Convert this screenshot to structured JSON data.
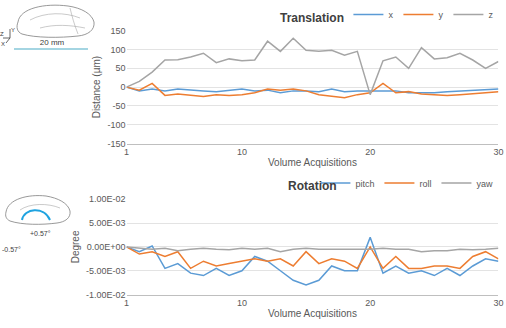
{
  "chart_data": [
    {
      "type": "line",
      "title": "Translation",
      "x": [
        1,
        2,
        3,
        4,
        5,
        6,
        7,
        8,
        9,
        10,
        11,
        12,
        13,
        14,
        15,
        16,
        17,
        18,
        19,
        20,
        21,
        22,
        23,
        24,
        25,
        26,
        27,
        28,
        29,
        30
      ],
      "xlabel": "Volume Acquisitions",
      "ylabel": "Distance (µm)",
      "xlim": [
        1,
        30
      ],
      "xticks": [
        1,
        10,
        20,
        30
      ],
      "ylim": [
        -150,
        150
      ],
      "yticks": [
        -150,
        -100,
        -50,
        0,
        50,
        100,
        150
      ],
      "grid": true,
      "legend": "top right",
      "annotations": [
        "20 mm",
        "Z",
        "Y",
        "X"
      ],
      "series": [
        {
          "name": "x",
          "color": "#5b9bd5",
          "values": [
            0,
            -10,
            -5,
            -10,
            -5,
            -8,
            -10,
            -12,
            -8,
            -5,
            -10,
            -8,
            -15,
            -10,
            -10,
            -12,
            -5,
            -12,
            -10,
            -10,
            -8,
            -10,
            -15,
            -15,
            -15,
            -12,
            -10,
            -10,
            -8,
            -5
          ]
        },
        {
          "name": "y",
          "color": "#ed7d31",
          "values": [
            0,
            -8,
            10,
            -22,
            -18,
            -22,
            -25,
            -20,
            -22,
            -20,
            -15,
            -5,
            -8,
            -5,
            -10,
            -20,
            -25,
            -28,
            -20,
            -15,
            10,
            -15,
            -12,
            -18,
            -20,
            -22,
            -20,
            -18,
            -15,
            -12
          ]
        },
        {
          "name": "z",
          "color": "#a5a5a5",
          "values": [
            0,
            15,
            40,
            72,
            73,
            80,
            90,
            65,
            75,
            70,
            72,
            122,
            95,
            130,
            98,
            95,
            98,
            85,
            95,
            -20,
            70,
            80,
            50,
            105,
            75,
            78,
            90,
            72,
            50,
            68
          ]
        }
      ]
    },
    {
      "type": "line",
      "title": "Rotation",
      "x": [
        1,
        2,
        3,
        4,
        5,
        6,
        7,
        8,
        9,
        10,
        11,
        12,
        13,
        14,
        15,
        16,
        17,
        18,
        19,
        20,
        21,
        22,
        23,
        24,
        25,
        26,
        27,
        28,
        29,
        30
      ],
      "xlabel": "Volume Acquisitions",
      "ylabel": "Degree",
      "xlim": [
        1,
        30
      ],
      "xticks": [
        1,
        10,
        20,
        30
      ],
      "ylim": [
        -0.01,
        0.01
      ],
      "yticks": [
        {
          "value": -0.01,
          "label": "-1.00E-02"
        },
        {
          "value": -0.005,
          "label": "-5.00E-03"
        },
        {
          "value": 0,
          "label": "0.00E+00"
        },
        {
          "value": 0.005,
          "label": "5.00E-03"
        },
        {
          "value": 0.01,
          "label": "1.00E-02"
        }
      ],
      "grid": true,
      "legend": "top right",
      "annotations": [
        "+0.57°",
        "-0.57°"
      ],
      "series": [
        {
          "name": "pitch",
          "color": "#5b9bd5",
          "values": [
            0,
            -0.001,
            0.0002,
            -0.0045,
            -0.0035,
            -0.0055,
            -0.006,
            -0.0045,
            -0.006,
            -0.005,
            -0.002,
            -0.003,
            -0.005,
            -0.007,
            -0.008,
            -0.007,
            -0.004,
            -0.005,
            -0.005,
            0.002,
            -0.0055,
            -0.004,
            -0.0055,
            -0.005,
            -0.006,
            -0.0045,
            -0.006,
            -0.004,
            -0.0025,
            -0.003
          ]
        },
        {
          "name": "roll",
          "color": "#ed7d31",
          "values": [
            0,
            -0.0015,
            -0.001,
            -0.002,
            -0.001,
            -0.0045,
            -0.003,
            -0.004,
            -0.0035,
            -0.003,
            -0.0025,
            -0.003,
            -0.0025,
            -0.004,
            -0.001,
            -0.0035,
            -0.0025,
            -0.003,
            -0.0045,
            0,
            -0.0045,
            -0.002,
            -0.0045,
            -0.0045,
            -0.004,
            -0.004,
            -0.0045,
            -0.002,
            -0.001,
            -0.0025
          ]
        },
        {
          "name": "yaw",
          "color": "#a5a5a5",
          "values": [
            0,
            -0.0002,
            -0.0005,
            -0.0003,
            -0.0008,
            -0.0005,
            -0.0003,
            -0.0005,
            -0.0006,
            -0.0003,
            -0.0005,
            -0.0003,
            -0.001,
            -0.0005,
            -0.0003,
            -0.0005,
            -0.0005,
            -0.0005,
            -0.0005,
            -0.0005,
            -0.0003,
            -0.0005,
            -0.0005,
            -0.001,
            -0.0008,
            -0.0008,
            -0.0005,
            -0.0006,
            -0.0005,
            -0.0003
          ]
        }
      ]
    }
  ]
}
